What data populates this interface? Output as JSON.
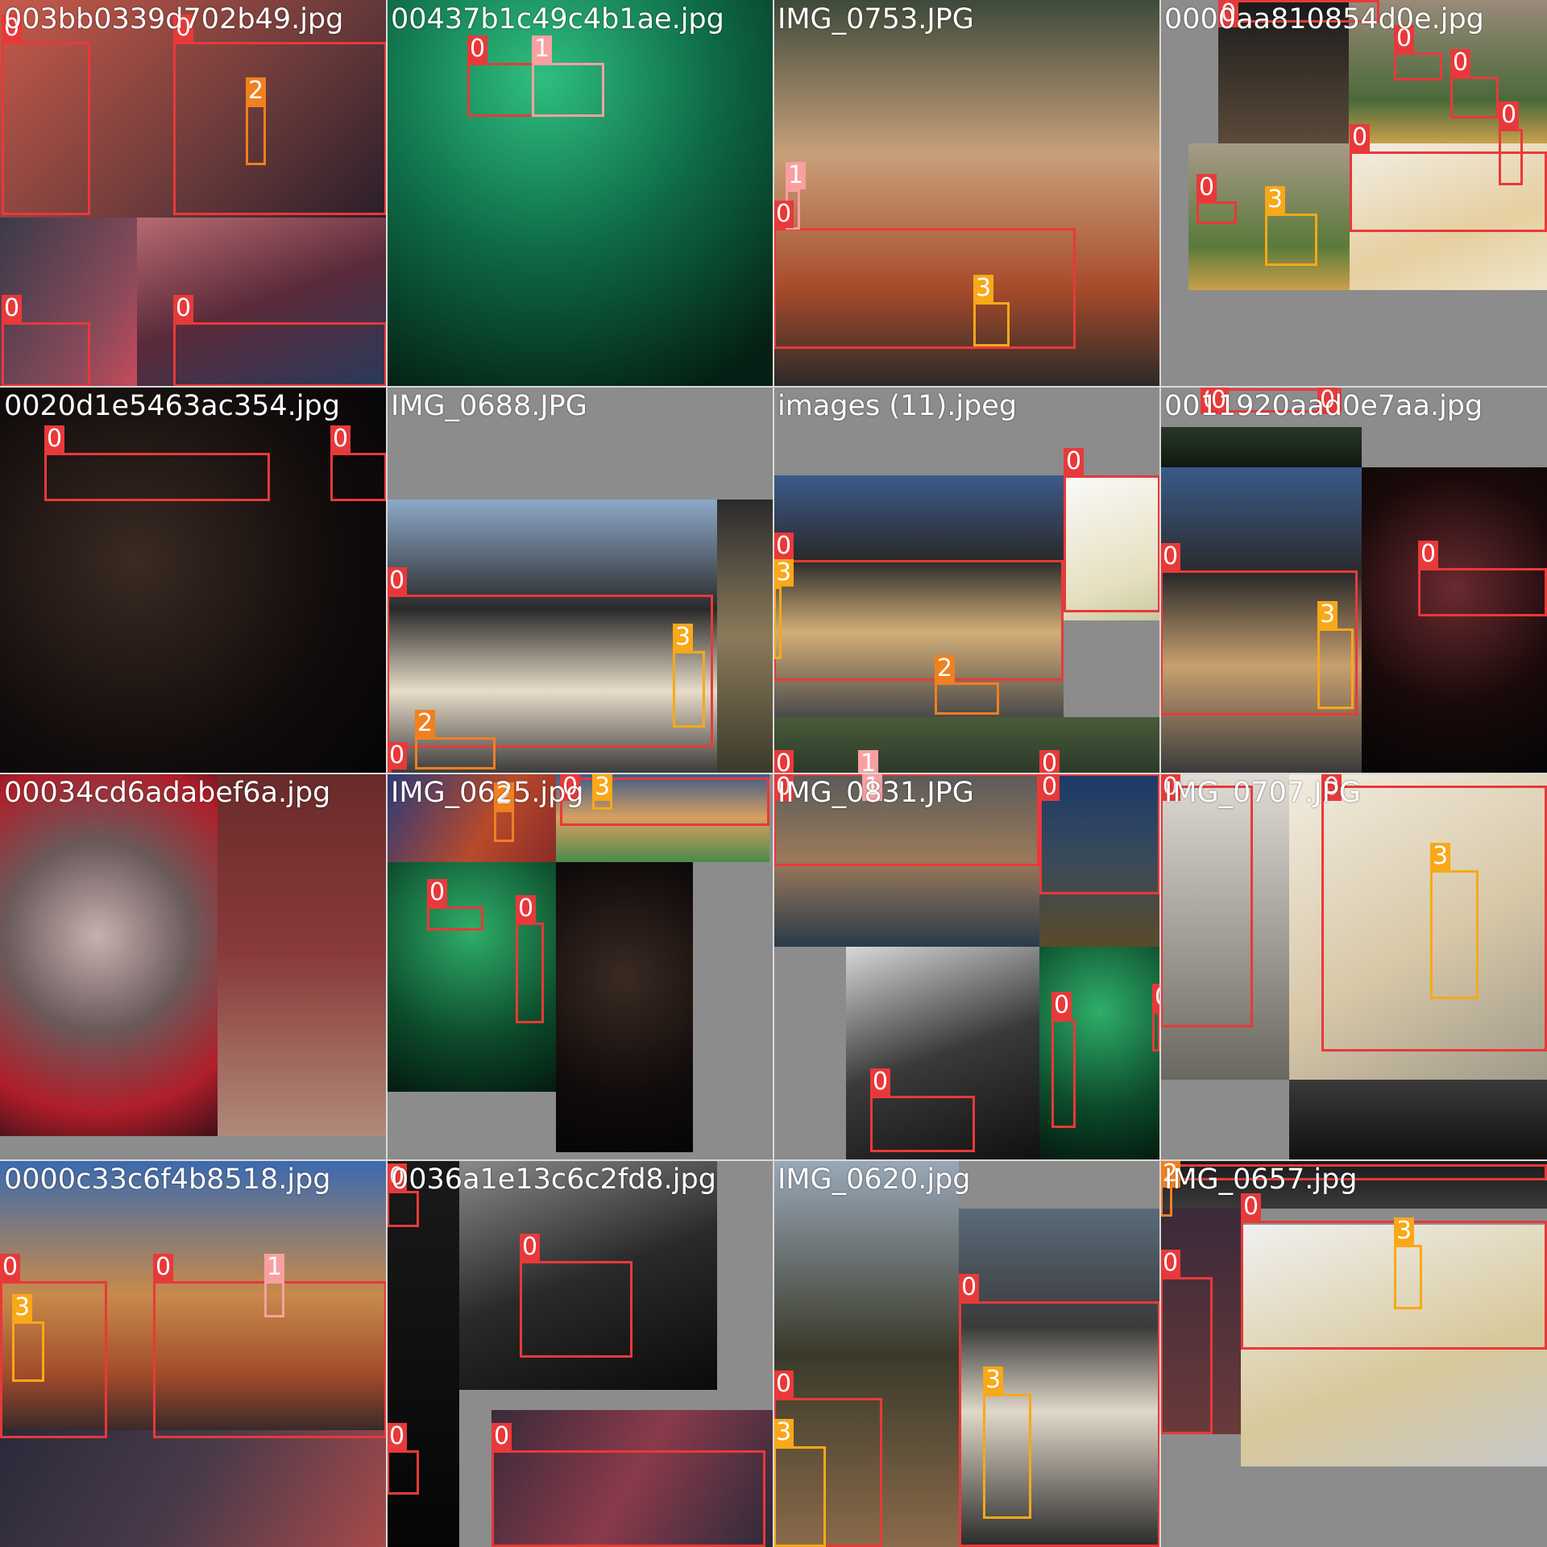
{
  "title": "",
  "colors": {
    "class_0": "#e8393a",
    "class_1": "#f8a0a0",
    "class_2": "#f08020",
    "class_3": "#f8a818",
    "pad_gray": "#8c8c8c",
    "grid_line": "#d8d8d8"
  },
  "tiles": [
    {
      "filename": "003bb0339d702b49.jpg",
      "labels": [
        "0",
        "0",
        "2",
        "0",
        "0"
      ],
      "regions": [
        {
          "bg": "linear-gradient(135deg,#c85a4a,#6a3a3a 60%,#2a1e2a)"
        },
        {
          "bg": "linear-gradient(160deg,#b76a70,#5a2a3a 50%,#2a3a5a)"
        },
        {
          "bg": "linear-gradient(120deg,#3a3a4a,#8a4a5a 70%,#c84a5a)"
        }
      ]
    },
    {
      "filename": "00437b1c49c4b1ae.jpg",
      "labels": [
        "0",
        "1"
      ],
      "regions": [
        {
          "bg": "radial-gradient(circle at 40% 20%,#2fbf80,#0e6a46 45%,#042014 90%)"
        }
      ]
    },
    {
      "filename": "IMG_0753.JPG",
      "labels": [
        "0",
        "1",
        "3"
      ],
      "regions": [
        {
          "bg": "linear-gradient(180deg,#3e4a3a,#c8a07a 40%,#a64a2a 75%,#2a2a2a)"
        }
      ]
    },
    {
      "filename": "0000aa810854d0e.jpg",
      "labels": [
        "0",
        "0",
        "0",
        "0",
        "0",
        "3",
        "0"
      ],
      "regions": [
        {
          "bg": "linear-gradient(180deg,#1a1a1a,#5a4a3a)"
        },
        {
          "bg": "linear-gradient(180deg,#9a8a7a,#4a6a3a 70%,#caa04a)"
        },
        {
          "bg": "linear-gradient(180deg,#a89a8a,#5a7a3a 70%,#caa04a)"
        },
        {
          "bg": "linear-gradient(160deg,#f2eee6,#e6cfa0 60%,#efe6c8)"
        }
      ]
    },
    {
      "filename": "0020d1e5463ac354.jpg",
      "labels": [
        "0",
        "0"
      ],
      "regions": [
        {
          "bg": "radial-gradient(circle at 35% 45%,#3a2a22,#120c0c 60%,#050505)"
        }
      ]
    },
    {
      "filename": "IMG_0688.JPG",
      "labels": [
        "0",
        "3",
        "2",
        "0"
      ],
      "regions": [
        {
          "bg": "linear-gradient(180deg,#8ca8c8,#2a2a2a 40%,#e8dcc8 70%,#3a3a3a)"
        },
        {
          "bg": "linear-gradient(180deg,#2a2a2a,#8a7a5a 50%,#3a3a2a)"
        }
      ]
    },
    {
      "filename": "images (11).jpeg",
      "labels": [
        "0",
        "0",
        "3",
        "2",
        "0",
        "1",
        "0"
      ],
      "regions": [
        {
          "bg": "linear-gradient(180deg,#3c5a8a,#2a2a2a 35%,#d2ae78 65%,#4a4a4a)"
        },
        {
          "bg": "linear-gradient(160deg,#fafafa,#e6e0c0 70%,#c8c8a0)"
        },
        {
          "bg": "linear-gradient(180deg,#4a5a3a,#2a3a2a)"
        }
      ]
    },
    {
      "filename": "0011920aad0e7aa.jpg",
      "labels": [
        "0",
        "0",
        "0",
        "0",
        "3",
        "0"
      ],
      "regions": [
        {
          "bg": "linear-gradient(180deg,#283828,#101810)"
        },
        {
          "bg": "linear-gradient(180deg,#3a5a8a,#2a2a2a 35%,#c8a070 65%,#3a3a3a)"
        },
        {
          "bg": "radial-gradient(circle at 50% 40%,#6a2a30,#1a0a0a 55%,#050505)"
        }
      ]
    },
    {
      "filename": "00034cd6adabef6a.jpg",
      "labels": [],
      "regions": [
        {
          "bg": "radial-gradient(circle at 45% 45%,#c8b0b0,#6a5a5a 40%,#b01e2a 75%,#401018)"
        },
        {
          "bg": "linear-gradient(180deg,#6a2a2a,#8a3a3a 50%,#b08a7a)"
        }
      ]
    },
    {
      "filename": "IMG_0625.jpg",
      "labels": [
        "2",
        "3",
        "0",
        "0",
        "0"
      ],
      "regions": [
        {
          "bg": "linear-gradient(120deg,#2a3a7a,#b84a2a 60%,#8a2a2a)"
        },
        {
          "bg": "linear-gradient(180deg,#3a5a8a,#d8a060 50%,#4a8a4a)"
        },
        {
          "bg": "radial-gradient(circle at 50% 30%,#2fae6a,#0c4a2a 60%,#041a10)"
        },
        {
          "bg": "radial-gradient(circle at 50% 40%,#3a2a22,#120c0c 60%,#050505)"
        }
      ]
    },
    {
      "filename": "IMG_0831.JPG",
      "labels": [
        "0",
        "1",
        "0",
        "0",
        "0",
        "0"
      ],
      "regions": [
        {
          "bg": "linear-gradient(180deg,#5a5a5a,#9a7a5a 50%,#2a3a4a)"
        },
        {
          "bg": "linear-gradient(180deg,#1a3a6a,#3a4a5a 50%,#5a4a2a)"
        },
        {
          "bg": "linear-gradient(160deg,#d8d8d8,#3a3a3a 50%,#101010)"
        },
        {
          "bg": "radial-gradient(circle at 50% 30%,#2fae6a,#0c4a2a 60%,#041a10)"
        }
      ]
    },
    {
      "filename": "IMG_0707.JPG",
      "labels": [
        "0",
        "0",
        "3"
      ],
      "regions": [
        {
          "bg": "linear-gradient(180deg,#e0dcd4,#9a9690 60%,#6a6660)"
        },
        {
          "bg": "linear-gradient(150deg,#f2ece0,#d8c8a8 55%,#a09a8a)"
        },
        {
          "bg": "linear-gradient(180deg,#3a3a3a,#101010)"
        }
      ]
    },
    {
      "filename": "0000c33c6f4b8518.jpg",
      "labels": [
        "0",
        "0",
        "1",
        "3"
      ],
      "regions": [
        {
          "bg": "linear-gradient(180deg,#3a6ab0,#c88a4a 50%,#a04a2a 80%,#3a2a2a)"
        },
        {
          "bg": "linear-gradient(120deg,#2a2a3a,#4a3a4a 50%,#a84a4a)"
        }
      ]
    },
    {
      "filename": "0036a1e13c6c2fd8.jpg",
      "labels": [
        "0",
        "0",
        "0",
        "0"
      ],
      "regions": [
        {
          "bg": "linear-gradient(180deg,#1a1a1a,#050505)"
        },
        {
          "bg": "linear-gradient(160deg,#8a8a8a,#2a2a2a 50%,#0a0a0a)"
        },
        {
          "bg": "linear-gradient(120deg,#3a2a3a,#8a3a4a 50%,#2a2a3a)"
        }
      ]
    },
    {
      "filename": "IMG_0620.jpg",
      "labels": [
        "0",
        "0",
        "3",
        "3"
      ],
      "regions": [
        {
          "bg": "linear-gradient(180deg,#9aa8b8,#3a3a2a 50%,#8a6a4a)"
        },
        {
          "bg": "linear-gradient(180deg,#5a6a7a,#3a3a3a 35%,#e0d8c8 60%,#2a2a2a)"
        }
      ]
    },
    {
      "filename": "IMG_0657.jpg",
      "labels": [
        "0",
        "2",
        "0",
        "3",
        "0"
      ],
      "regions": [
        {
          "bg": "linear-gradient(180deg,#1a1a1a,#3a3a3a)"
        },
        {
          "bg": "linear-gradient(180deg,#3a2a3a,#6a3a3a)"
        },
        {
          "bg": "linear-gradient(160deg,#f0f0f0,#d8c89a 60%,#c8c8c8)"
        }
      ]
    }
  ]
}
